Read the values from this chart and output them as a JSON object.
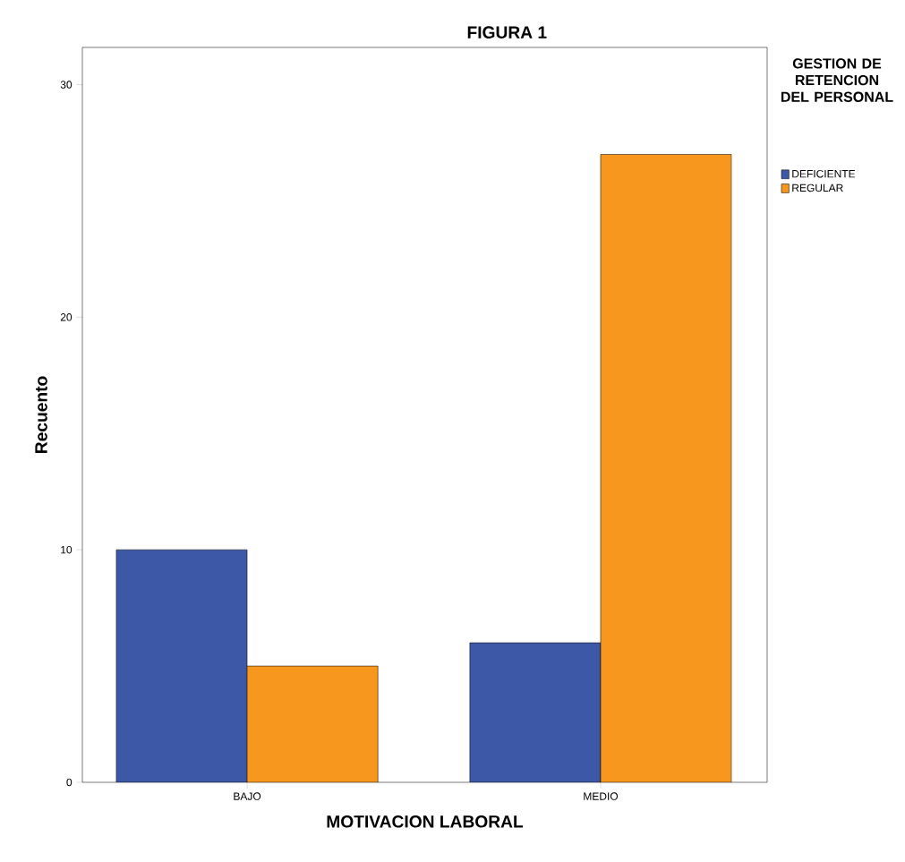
{
  "chart_data": {
    "type": "bar",
    "title": "FIGURA 1",
    "xlabel": "MOTIVACION LABORAL",
    "ylabel": "Recuento",
    "legend_title": "GESTION DE RETENCION DEL PERSONAL",
    "legend": "right",
    "categories": [
      "BAJO",
      "MEDIO"
    ],
    "series": [
      {
        "name": "DEFICIENTE",
        "color": "#3e58a8",
        "values": [
          10,
          6
        ]
      },
      {
        "name": "REGULAR",
        "color": "#f7971e",
        "values": [
          5,
          27
        ]
      }
    ],
    "ylim": [
      0,
      31.6
    ],
    "yticks": [
      0,
      10,
      20,
      30
    ],
    "grid": false
  }
}
